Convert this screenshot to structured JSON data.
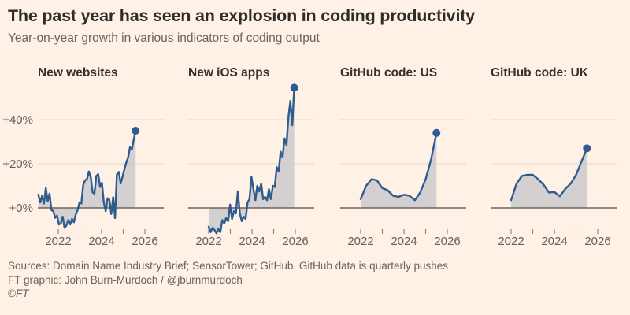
{
  "header": {
    "title": "The past year has seen an explosion in coding productivity",
    "subtitle": "Year-on-year growth in various indicators of coding output"
  },
  "colors": {
    "background": "#FFF1E5",
    "title_text": "#2E2C29",
    "muted_text": "#6B635B",
    "series_line": "#2E5C8F",
    "area_fill": "#C9C8CD",
    "gridline": "#E5D8CB",
    "zero_line": "#6B645E",
    "tick": "#8F8779"
  },
  "y_axis": {
    "labels": [
      "+40%",
      "+20%",
      "+0%"
    ],
    "grid_percents": [
      40,
      20
    ],
    "zero_percent": 0,
    "unit": "%"
  },
  "x_axis": {
    "tick_years": [
      2022,
      2023,
      2024,
      2025,
      2026
    ],
    "labeled_years": [
      2022,
      2024,
      2026
    ]
  },
  "chart_data": [
    {
      "type": "area",
      "title": "New websites",
      "ylabel": "Year-on-year growth (%)",
      "ylim": [
        -15,
        56
      ],
      "grid": true,
      "x_start": 2021.08,
      "x_end": 2025.57,
      "values": [
        6,
        2.5,
        5.5,
        2,
        9,
        3,
        6.5,
        -1,
        -1.5,
        -4.5,
        -3.5,
        -7.5,
        -7,
        -4,
        -9,
        -8,
        -5.5,
        -7.5,
        -5,
        -6.5,
        -3,
        -1,
        2.5,
        2,
        10.5,
        12.5,
        13,
        16.5,
        14,
        7,
        6.5,
        14.5,
        15.3,
        9.5,
        11.4,
        2.6,
        -1.5,
        4.4,
        3.7,
        -2.8,
        4.9,
        -4.6,
        15.1,
        16.3,
        11.1,
        14.1,
        17.5,
        20.5,
        23,
        27.5,
        26.5,
        31,
        35
      ],
      "end_value": 35
    },
    {
      "type": "area",
      "title": "New iOS apps",
      "ylabel": "Year-on-year growth (%)",
      "ylim": [
        -15,
        56
      ],
      "grid": true,
      "x_start": 2022.0,
      "x_end": 2025.95,
      "values": [
        -8.5,
        -11,
        -9,
        -10,
        -11.5,
        -9.5,
        -11,
        -5.5,
        -7,
        -4.5,
        -6,
        1.5,
        -5,
        -1.5,
        -2.5,
        7.5,
        -2.5,
        -6,
        -4,
        -5,
        2.5,
        4,
        14,
        8.5,
        3.5,
        10,
        7.5,
        11,
        4,
        5,
        3.5,
        8.5,
        4,
        10,
        9.5,
        18.5,
        16.5,
        25.5,
        23,
        31.5,
        28.5,
        41,
        48.5,
        37.5,
        54.5
      ],
      "end_value": 54.5
    },
    {
      "type": "area",
      "title": "GitHub code: US",
      "ylabel": "Year-on-year growth (%)",
      "ylim": [
        -15,
        56
      ],
      "grid": true,
      "x_start": 2022.0,
      "x_end": 2025.5,
      "values": [
        4,
        10,
        13,
        12.5,
        9,
        8,
        5.5,
        5,
        6,
        5.5,
        3.5,
        7,
        13,
        22,
        34
      ],
      "end_value": 34
    },
    {
      "type": "area",
      "title": "GitHub code: UK",
      "ylabel": "Year-on-year growth (%)",
      "ylim": [
        -15,
        56
      ],
      "grid": true,
      "x_start": 2022.0,
      "x_end": 2025.5,
      "values": [
        3.5,
        11,
        14.5,
        15,
        15,
        13,
        10.5,
        7,
        7.2,
        5.3,
        8.6,
        11,
        15,
        21,
        27
      ],
      "end_value": 27
    }
  ],
  "footer": {
    "sources": "Sources: Domain Name Industry Brief; SensorTower; GitHub. GitHub data is quarterly pushes",
    "credit": "FT graphic: John Burn-Murdoch / @jburnmurdoch",
    "copyright": "©FT"
  }
}
